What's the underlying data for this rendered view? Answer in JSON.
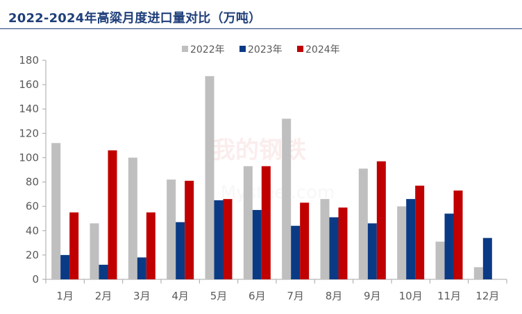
{
  "title": "2022-2024年高粱月度进口量对比（万吨）",
  "watermark": {
    "cn": "我的钢铁",
    "en": "Mysteel.com"
  },
  "colors": {
    "title": "#1f3f7a",
    "s2022": "#bfbfbf",
    "s2023": "#0b3a85",
    "s2024": "#c00000",
    "axis": "#a6a6a6",
    "text": "#595959"
  },
  "chart_data": {
    "type": "bar",
    "title": "2022-2024年高粱月度进口量对比（万吨）",
    "xlabel": "",
    "ylabel": "",
    "ylim": [
      0,
      180
    ],
    "yticks": [
      0,
      20,
      40,
      60,
      80,
      100,
      120,
      140,
      160,
      180
    ],
    "grid": false,
    "legend_position": "top-center",
    "categories": [
      "1月",
      "2月",
      "3月",
      "4月",
      "5月",
      "6月",
      "7月",
      "8月",
      "9月",
      "10月",
      "11月",
      "12月"
    ],
    "series": [
      {
        "name": "2022年",
        "color": "#bfbfbf",
        "values": [
          112,
          46,
          100,
          82,
          167,
          93,
          132,
          66,
          91,
          60,
          31,
          10
        ]
      },
      {
        "name": "2023年",
        "color": "#0b3a85",
        "values": [
          20,
          12,
          18,
          47,
          65,
          57,
          44,
          51,
          46,
          66,
          54,
          34
        ]
      },
      {
        "name": "2024年",
        "color": "#c00000",
        "values": [
          55,
          106,
          55,
          81,
          66,
          93,
          63,
          59,
          97,
          77,
          73,
          null
        ]
      }
    ]
  }
}
